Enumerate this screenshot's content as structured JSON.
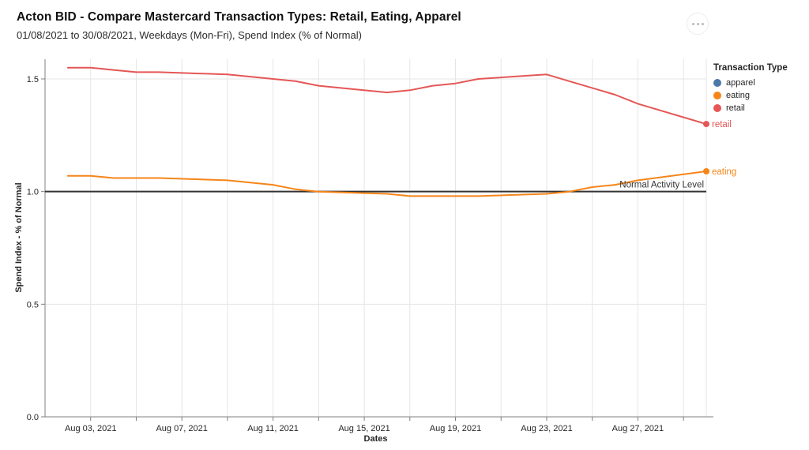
{
  "header": {
    "title": "Acton BID - Compare Mastercard Transaction Types: Retail, Eating, Apparel",
    "subtitle": "01/08/2021 to 30/08/2021, Weekdays (Mon-Fri), Spend Index (% of Normal)"
  },
  "icons": {
    "more_options": "three-dot-ellipsis-in-circle"
  },
  "legend": {
    "title": "Transaction Type",
    "items": [
      {
        "label": "apparel",
        "color": "#4c78a8"
      },
      {
        "label": "eating",
        "color": "#f58518"
      },
      {
        "label": "retail",
        "color": "#e45756"
      }
    ]
  },
  "chart_data": {
    "type": "line",
    "title": "Acton BID - Compare Mastercard Transaction Types: Retail, Eating, Apparel",
    "subtitle": "01/08/2021 to 30/08/2021, Weekdays (Mon-Fri), Spend Index (% of Normal)",
    "xlabel": "Dates",
    "ylabel": "Spend Index - % of Normal",
    "x_unit": "day of August 2021 (weekdays Mon-Fri only)",
    "x_days": [
      2,
      3,
      4,
      5,
      6,
      9,
      10,
      11,
      12,
      13,
      16,
      17,
      18,
      19,
      20,
      23,
      24,
      25,
      26,
      27,
      30
    ],
    "series": [
      {
        "name": "apparel",
        "color": "#4c78a8",
        "plotted": false,
        "values": []
      },
      {
        "name": "eating",
        "color": "#f58518",
        "plotted": true,
        "end_label": "eating",
        "values": [
          1.07,
          1.07,
          1.06,
          1.06,
          1.06,
          1.05,
          1.04,
          1.03,
          1.01,
          1.0,
          0.99,
          0.98,
          0.98,
          0.98,
          0.98,
          0.99,
          1.0,
          1.02,
          1.03,
          1.05,
          1.09
        ]
      },
      {
        "name": "retail",
        "color": "#e45756",
        "plotted": true,
        "end_label": "retail",
        "values": [
          1.55,
          1.55,
          1.54,
          1.53,
          1.53,
          1.52,
          1.51,
          1.5,
          1.49,
          1.47,
          1.44,
          1.45,
          1.47,
          1.48,
          1.5,
          1.52,
          1.49,
          1.46,
          1.43,
          1.39,
          1.3
        ]
      }
    ],
    "x_ticks": [
      {
        "day": 3,
        "label": "Aug 03, 2021"
      },
      {
        "day": 5,
        "label": ""
      },
      {
        "day": 7,
        "label": "Aug 07, 2021"
      },
      {
        "day": 9,
        "label": ""
      },
      {
        "day": 11,
        "label": "Aug 11, 2021"
      },
      {
        "day": 13,
        "label": ""
      },
      {
        "day": 15,
        "label": "Aug 15, 2021"
      },
      {
        "day": 17,
        "label": ""
      },
      {
        "day": 19,
        "label": "Aug 19, 2021"
      },
      {
        "day": 21,
        "label": ""
      },
      {
        "day": 23,
        "label": "Aug 23, 2021"
      },
      {
        "day": 25,
        "label": ""
      },
      {
        "day": 27,
        "label": "Aug 27, 2021"
      },
      {
        "day": 29,
        "label": ""
      }
    ],
    "y_ticks": [
      {
        "value": 0.0,
        "label": "0.0"
      },
      {
        "value": 0.5,
        "label": "0.5"
      },
      {
        "value": 1.0,
        "label": "1.0"
      },
      {
        "value": 1.5,
        "label": "1.5"
      }
    ],
    "x_domain_days": [
      1,
      30
    ],
    "y_domain": [
      0,
      1.59
    ],
    "grid": true,
    "legend_position": "right",
    "annotation": {
      "label": "Normal Activity Level",
      "value": 1.0,
      "color": "#333333"
    }
  },
  "colors": {
    "grid": "#e5e5e5",
    "axis": "#808080",
    "tick_label": "#262626",
    "annotation_line": "#333333",
    "background": "#ffffff"
  }
}
